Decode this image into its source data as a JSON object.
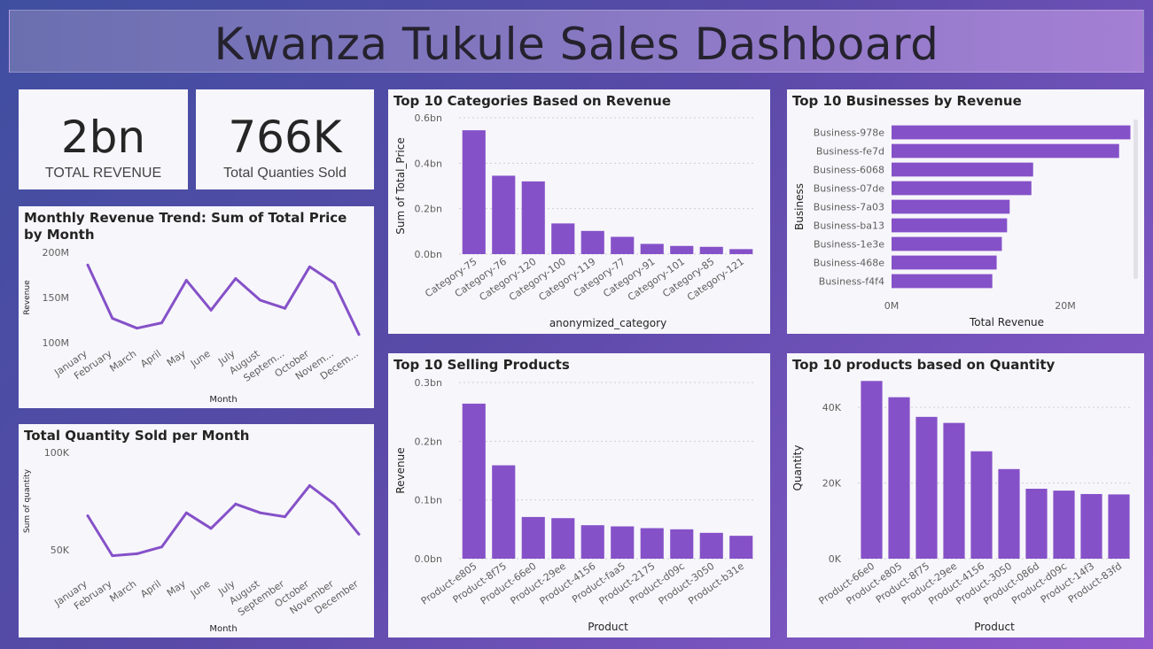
{
  "title": "Kwanza Tukule Sales Dashboard",
  "kpis": [
    {
      "value": "2bn",
      "label": "TOTAL REVENUE"
    },
    {
      "value": "766K",
      "label": "Total Quanties Sold"
    }
  ],
  "colors": {
    "bar": "#8551c8",
    "line": "#8551c8",
    "grid": "#cfcfcf",
    "card": "#f7f6fb"
  },
  "chart_data": [
    {
      "id": "monthly_revenue",
      "type": "line",
      "title": "Monthly Revenue Trend: Sum of Total Price by Month",
      "xlabel": "Month",
      "ylabel": "Revenue",
      "categories": [
        "January",
        "February",
        "March",
        "April",
        "May",
        "June",
        "July",
        "August",
        "Septem...",
        "October",
        "Novem...",
        "Decem..."
      ],
      "values": [
        186,
        127,
        116,
        122,
        169,
        136,
        171,
        147,
        138,
        184,
        166,
        109
      ],
      "ylim": [
        100,
        200
      ],
      "yticks": [
        {
          "v": 200,
          "label": "200M"
        },
        {
          "v": 150,
          "label": "150M"
        },
        {
          "v": 100,
          "label": "100M"
        }
      ],
      "grid": false
    },
    {
      "id": "monthly_quantity",
      "type": "line",
      "title": "Total Quantity Sold per Month",
      "xlabel": "Month",
      "ylabel": "Sum of quantity",
      "categories": [
        "January",
        "February",
        "March",
        "April",
        "May",
        "June",
        "July",
        "August",
        "September",
        "October",
        "November",
        "December"
      ],
      "values": [
        67.5,
        47,
        48,
        51.5,
        69,
        61,
        73.5,
        69,
        67,
        83,
        73.5,
        58
      ],
      "ylim": [
        50,
        100
      ],
      "yticks": [
        {
          "v": 100,
          "label": "100K"
        },
        {
          "v": 50,
          "label": "50K"
        }
      ],
      "grid": false
    },
    {
      "id": "top_categories",
      "type": "bar",
      "title": "Top 10 Categories Based on Revenue",
      "xlabel": "anonymized_category",
      "ylabel": "Sum of Total_Price",
      "categories": [
        "Category-75",
        "Category-76",
        "Category-120",
        "Category-100",
        "Category-119",
        "Category-77",
        "Category-91",
        "Category-101",
        "Category-85",
        "Category-121"
      ],
      "values": [
        0.545,
        0.345,
        0.32,
        0.135,
        0.102,
        0.076,
        0.045,
        0.036,
        0.032,
        0.022
      ],
      "ylim": [
        0,
        0.6
      ],
      "yticks": [
        {
          "v": 0.6,
          "label": "0.6bn"
        },
        {
          "v": 0.4,
          "label": "0.4bn"
        },
        {
          "v": 0.2,
          "label": "0.2bn"
        },
        {
          "v": 0,
          "label": "0.0bn"
        }
      ],
      "grid": true
    },
    {
      "id": "top_businesses",
      "type": "bar",
      "orientation": "horizontal",
      "title": "Top 10 Businesses by Revenue",
      "xlabel": "Total Revenue",
      "ylabel": "Business",
      "categories": [
        "Business-978e",
        "Business-fe7d",
        "Business-6068",
        "Business-07de",
        "Business-7a03",
        "Business-ba13",
        "Business-1e3e",
        "Business-468e",
        "Business-f4f4"
      ],
      "values": [
        27.5,
        26.2,
        16.3,
        16.1,
        13.6,
        13.3,
        12.7,
        12.1,
        11.6
      ],
      "xlim": [
        0,
        30
      ],
      "xticks": [
        {
          "v": 0,
          "label": "0M"
        },
        {
          "v": 20,
          "label": "20M"
        }
      ],
      "grid": false
    },
    {
      "id": "top_products_revenue",
      "type": "bar",
      "title": "Top 10 Selling Products",
      "xlabel": "Product",
      "ylabel": "Revenue",
      "categories": [
        "Product-e805",
        "Product-8f75",
        "Product-66e0",
        "Product-29ee",
        "Product-4156",
        "Product-faa5",
        "Product-2175",
        "Product-d09c",
        "Product-3050",
        "Product-b31e"
      ],
      "values": [
        0.264,
        0.159,
        0.071,
        0.069,
        0.057,
        0.055,
        0.052,
        0.05,
        0.044,
        0.039
      ],
      "ylim": [
        0,
        0.3
      ],
      "yticks": [
        {
          "v": 0.3,
          "label": "0.3bn"
        },
        {
          "v": 0.2,
          "label": "0.2bn"
        },
        {
          "v": 0.1,
          "label": "0.1bn"
        },
        {
          "v": 0,
          "label": "0.0bn"
        }
      ],
      "grid": true
    },
    {
      "id": "top_products_quantity",
      "type": "bar",
      "title": "Top 10 products based on Quantity",
      "xlabel": "Product",
      "ylabel": "Quantity",
      "categories": [
        "Product-66e0",
        "Product-e805",
        "Product-8f75",
        "Product-29ee",
        "Product-4156",
        "Product-3050",
        "Product-086d",
        "Product-d09c",
        "Product-14f3",
        "Product-83fd"
      ],
      "values": [
        47000,
        42700,
        37500,
        35900,
        28400,
        23700,
        18500,
        18000,
        17100,
        17000
      ],
      "ylim": [
        0,
        48000
      ],
      "yticks": [
        {
          "v": 40000,
          "label": "40K"
        },
        {
          "v": 20000,
          "label": "20K"
        },
        {
          "v": 0,
          "label": "0K"
        }
      ],
      "grid": true
    }
  ]
}
